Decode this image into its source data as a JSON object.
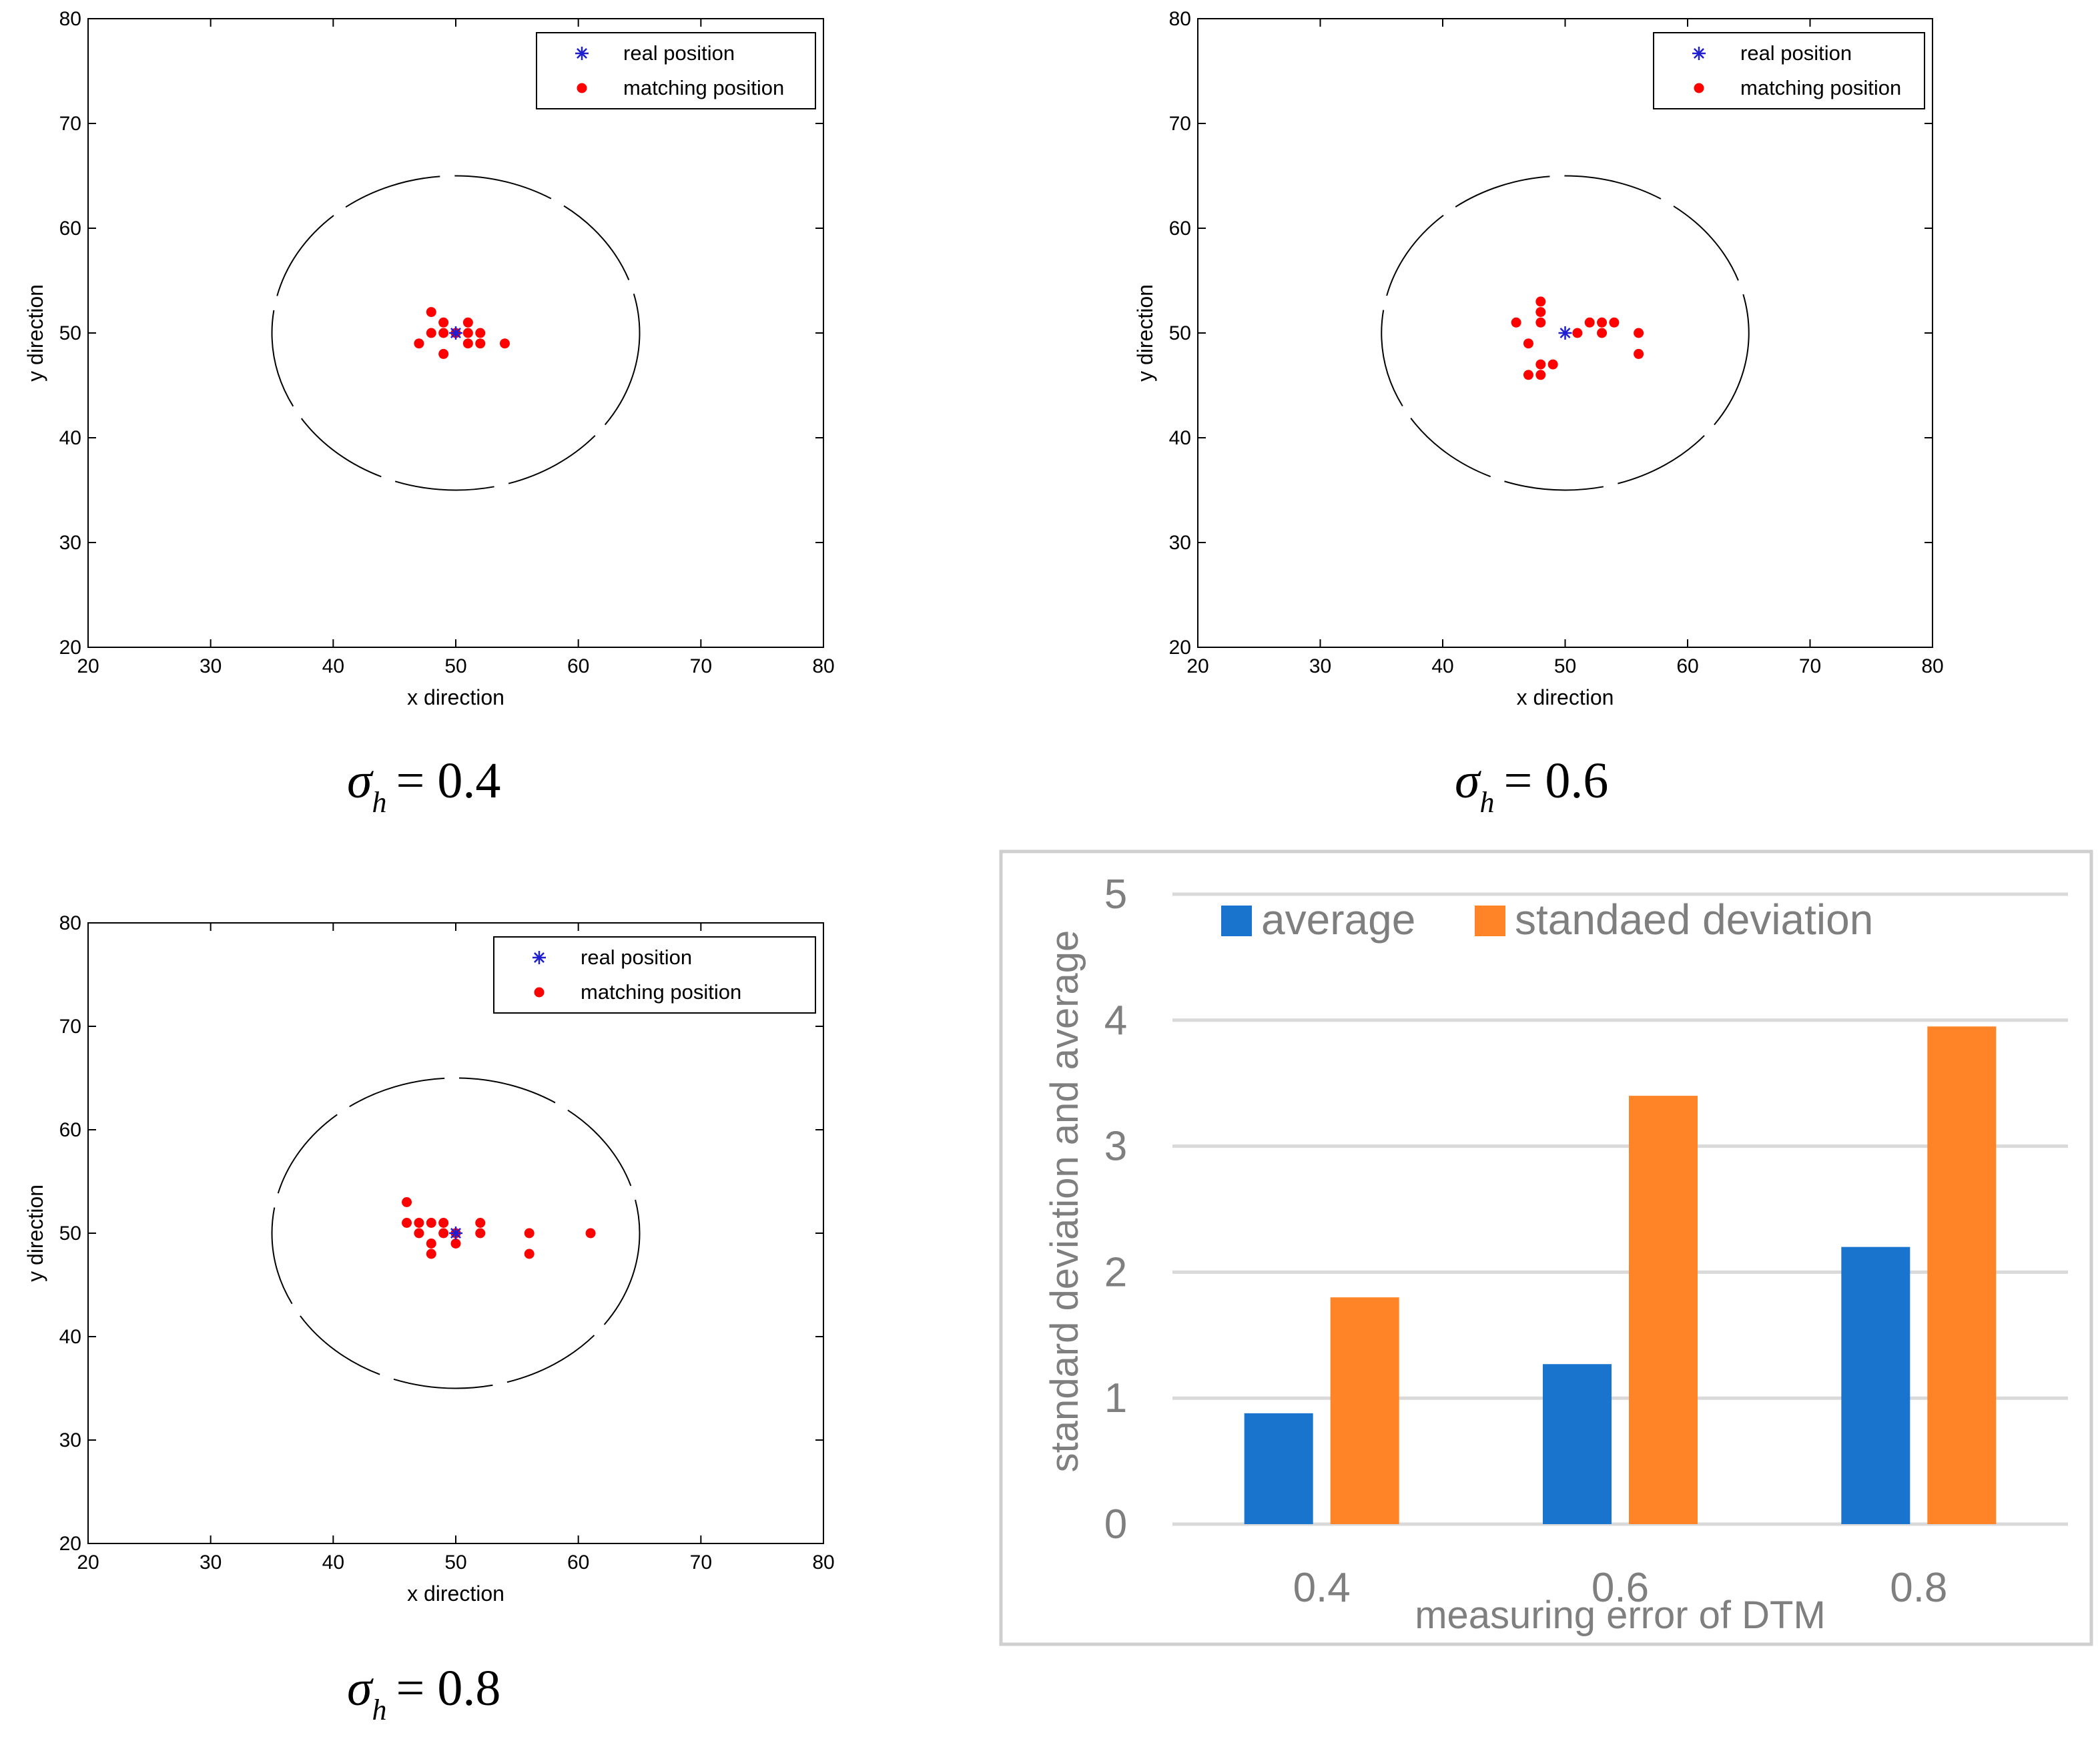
{
  "colors": {
    "real": "#1f1fd2",
    "matching": "#ff0000",
    "average": "#1874cd",
    "std": "#ff8427",
    "bar_text": "#7f7f7f",
    "grid": "#d9d9d9",
    "frame": "#cfcfcf"
  },
  "chart_data": [
    {
      "type": "scatter",
      "caption_symbol": "σ",
      "caption_sub": "h",
      "caption_value": "= 0.4",
      "xlabel": "x direction",
      "ylabel": "y direction",
      "xlim": [
        20,
        80
      ],
      "ylim": [
        20,
        80
      ],
      "xticks": [
        "20",
        "30",
        "40",
        "50",
        "60",
        "70",
        "80"
      ],
      "yticks": [
        "20",
        "30",
        "40",
        "50",
        "60",
        "70",
        "80"
      ],
      "legend": [
        "real position",
        "matching position"
      ],
      "circle": {
        "cx": 50,
        "cy": 50,
        "r": 15
      },
      "real": {
        "x": 50,
        "y": 50
      },
      "matching": [
        {
          "x": 48,
          "y": 52
        },
        {
          "x": 49,
          "y": 51
        },
        {
          "x": 51,
          "y": 51
        },
        {
          "x": 48,
          "y": 50
        },
        {
          "x": 49,
          "y": 50
        },
        {
          "x": 50,
          "y": 50
        },
        {
          "x": 51,
          "y": 50
        },
        {
          "x": 52,
          "y": 50
        },
        {
          "x": 47,
          "y": 49
        },
        {
          "x": 51,
          "y": 49
        },
        {
          "x": 52,
          "y": 49
        },
        {
          "x": 54,
          "y": 49
        },
        {
          "x": 49,
          "y": 48
        }
      ]
    },
    {
      "type": "scatter",
      "caption_symbol": "σ",
      "caption_sub": "h",
      "caption_value": "= 0.6",
      "xlabel": "x direction",
      "ylabel": "y direction",
      "xlim": [
        20,
        80
      ],
      "ylim": [
        20,
        80
      ],
      "xticks": [
        "20",
        "30",
        "40",
        "50",
        "60",
        "70",
        "80"
      ],
      "yticks": [
        "20",
        "30",
        "40",
        "50",
        "60",
        "70",
        "80"
      ],
      "legend": [
        "real position",
        "matching position"
      ],
      "circle": {
        "cx": 50,
        "cy": 50,
        "r": 15
      },
      "real": {
        "x": 50,
        "y": 50
      },
      "matching": [
        {
          "x": 48,
          "y": 53
        },
        {
          "x": 48,
          "y": 52
        },
        {
          "x": 46,
          "y": 51
        },
        {
          "x": 48,
          "y": 51
        },
        {
          "x": 52,
          "y": 51
        },
        {
          "x": 53,
          "y": 51
        },
        {
          "x": 54,
          "y": 51
        },
        {
          "x": 51,
          "y": 50
        },
        {
          "x": 53,
          "y": 50
        },
        {
          "x": 56,
          "y": 50
        },
        {
          "x": 47,
          "y": 49
        },
        {
          "x": 56,
          "y": 48
        },
        {
          "x": 48,
          "y": 47
        },
        {
          "x": 49,
          "y": 47
        },
        {
          "x": 47,
          "y": 46
        },
        {
          "x": 48,
          "y": 46
        }
      ]
    },
    {
      "type": "scatter",
      "caption_symbol": "σ",
      "caption_sub": "h",
      "caption_value": "= 0.8",
      "xlabel": "x direction",
      "ylabel": "y direction",
      "xlim": [
        20,
        80
      ],
      "ylim": [
        20,
        80
      ],
      "xticks": [
        "20",
        "30",
        "40",
        "50",
        "60",
        "70",
        "80"
      ],
      "yticks": [
        "20",
        "30",
        "40",
        "50",
        "60",
        "70",
        "80"
      ],
      "legend": [
        "real position",
        "matching position"
      ],
      "circle": {
        "cx": 50,
        "cy": 50,
        "r": 15
      },
      "real": {
        "x": 50,
        "y": 50
      },
      "matching": [
        {
          "x": 46,
          "y": 53
        },
        {
          "x": 46,
          "y": 51
        },
        {
          "x": 47,
          "y": 51
        },
        {
          "x": 48,
          "y": 51
        },
        {
          "x": 49,
          "y": 51
        },
        {
          "x": 52,
          "y": 51
        },
        {
          "x": 47,
          "y": 50
        },
        {
          "x": 49,
          "y": 50
        },
        {
          "x": 50,
          "y": 50
        },
        {
          "x": 52,
          "y": 50
        },
        {
          "x": 56,
          "y": 50
        },
        {
          "x": 61,
          "y": 50
        },
        {
          "x": 48,
          "y": 49
        },
        {
          "x": 50,
          "y": 49
        },
        {
          "x": 48,
          "y": 48
        },
        {
          "x": 56,
          "y": 48
        }
      ]
    },
    {
      "type": "bar",
      "xlabel": "measuring error of DTM",
      "ylabel": "standard deviation and average",
      "categories": [
        "0.4",
        "0.6",
        "0.8"
      ],
      "ylim": [
        0,
        5
      ],
      "yticks": [
        "0",
        "1",
        "2",
        "3",
        "4",
        "5"
      ],
      "series": [
        {
          "name": "average",
          "values": [
            0.88,
            1.27,
            2.2
          ]
        },
        {
          "name": "standaed deviation",
          "values": [
            1.8,
            3.4,
            3.95
          ]
        }
      ]
    }
  ]
}
